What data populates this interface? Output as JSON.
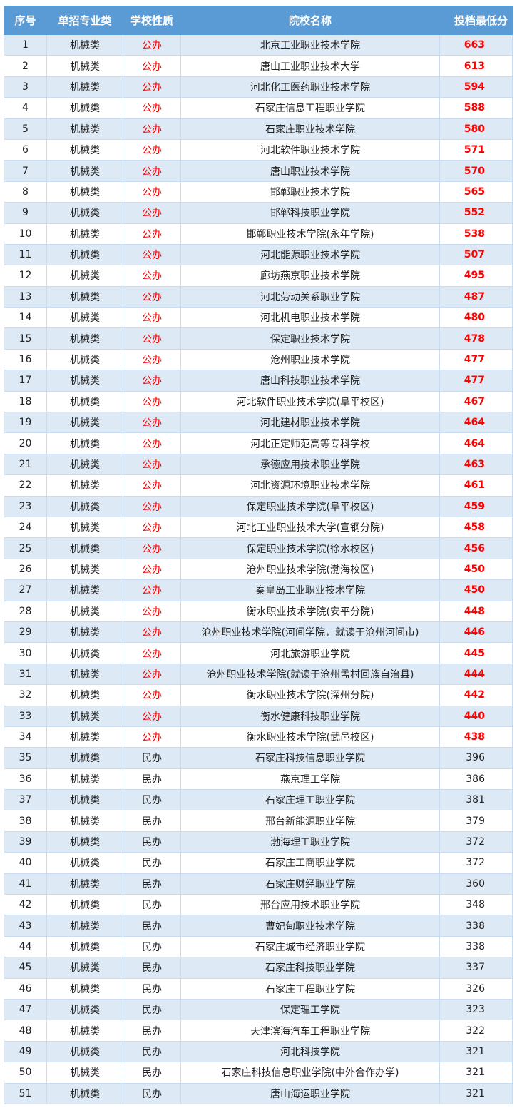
{
  "headers": [
    "序号",
    "单招专业类",
    "学校性质",
    "院校名称",
    "投档最低分"
  ],
  "colors": {
    "header_bg": "#5b9bd5",
    "row_alt": "#dde9f5",
    "public_text": "#ff0000"
  },
  "rows": [
    [
      "1",
      "机械类",
      "公办",
      "北京工业职业技术学院",
      "663"
    ],
    [
      "2",
      "机械类",
      "公办",
      "唐山工业职业技术大学",
      "613"
    ],
    [
      "3",
      "机械类",
      "公办",
      "河北化工医药职业技术学院",
      "594"
    ],
    [
      "4",
      "机械类",
      "公办",
      "石家庄信息工程职业学院",
      "588"
    ],
    [
      "5",
      "机械类",
      "公办",
      "石家庄职业技术学院",
      "580"
    ],
    [
      "6",
      "机械类",
      "公办",
      "河北软件职业技术学院",
      "571"
    ],
    [
      "7",
      "机械类",
      "公办",
      "唐山职业技术学院",
      "570"
    ],
    [
      "8",
      "机械类",
      "公办",
      "邯郸职业技术学院",
      "565"
    ],
    [
      "9",
      "机械类",
      "公办",
      "邯郸科技职业学院",
      "552"
    ],
    [
      "10",
      "机械类",
      "公办",
      "邯郸职业技术学院(永年学院)",
      "538"
    ],
    [
      "11",
      "机械类",
      "公办",
      "河北能源职业技术学院",
      "507"
    ],
    [
      "12",
      "机械类",
      "公办",
      "廊坊燕京职业技术学院",
      "495"
    ],
    [
      "13",
      "机械类",
      "公办",
      "河北劳动关系职业学院",
      "487"
    ],
    [
      "14",
      "机械类",
      "公办",
      "河北机电职业技术学院",
      "480"
    ],
    [
      "15",
      "机械类",
      "公办",
      "保定职业技术学院",
      "478"
    ],
    [
      "16",
      "机械类",
      "公办",
      "沧州职业技术学院",
      "477"
    ],
    [
      "17",
      "机械类",
      "公办",
      "唐山科技职业技术学院",
      "477"
    ],
    [
      "18",
      "机械类",
      "公办",
      "河北软件职业技术学院(阜平校区)",
      "467"
    ],
    [
      "19",
      "机械类",
      "公办",
      "河北建材职业技术学院",
      "464"
    ],
    [
      "20",
      "机械类",
      "公办",
      "河北正定师范高等专科学校",
      "464"
    ],
    [
      "21",
      "机械类",
      "公办",
      "承德应用技术职业学院",
      "463"
    ],
    [
      "22",
      "机械类",
      "公办",
      "河北资源环境职业技术学院",
      "461"
    ],
    [
      "23",
      "机械类",
      "公办",
      "保定职业技术学院(阜平校区)",
      "459"
    ],
    [
      "24",
      "机械类",
      "公办",
      "河北工业职业技术大学(宣钢分院)",
      "458"
    ],
    [
      "25",
      "机械类",
      "公办",
      "保定职业技术学院(徐水校区)",
      "456"
    ],
    [
      "26",
      "机械类",
      "公办",
      "沧州职业技术学院(渤海校区)",
      "450"
    ],
    [
      "27",
      "机械类",
      "公办",
      "秦皇岛工业职业技术学院",
      "450"
    ],
    [
      "28",
      "机械类",
      "公办",
      "衡水职业技术学院(安平分院)",
      "448"
    ],
    [
      "29",
      "机械类",
      "公办",
      "沧州职业技术学院(河间学院，就读于沧州河间市)",
      "446"
    ],
    [
      "30",
      "机械类",
      "公办",
      "河北旅游职业学院",
      "445"
    ],
    [
      "31",
      "机械类",
      "公办",
      "沧州职业技术学院(就读于沧州孟村回族自治县)",
      "444"
    ],
    [
      "32",
      "机械类",
      "公办",
      "衡水职业技术学院(深州分院)",
      "442"
    ],
    [
      "33",
      "机械类",
      "公办",
      "衡水健康科技职业学院",
      "440"
    ],
    [
      "34",
      "机械类",
      "公办",
      "衡水职业技术学院(武邑校区)",
      "438"
    ],
    [
      "35",
      "机械类",
      "民办",
      "石家庄科技信息职业学院",
      "396"
    ],
    [
      "36",
      "机械类",
      "民办",
      "燕京理工学院",
      "386"
    ],
    [
      "37",
      "机械类",
      "民办",
      "石家庄理工职业学院",
      "381"
    ],
    [
      "38",
      "机械类",
      "民办",
      "邢台新能源职业学院",
      "379"
    ],
    [
      "39",
      "机械类",
      "民办",
      "渤海理工职业学院",
      "372"
    ],
    [
      "40",
      "机械类",
      "民办",
      "石家庄工商职业学院",
      "372"
    ],
    [
      "41",
      "机械类",
      "民办",
      "石家庄财经职业学院",
      "360"
    ],
    [
      "42",
      "机械类",
      "民办",
      "邢台应用技术职业学院",
      "348"
    ],
    [
      "43",
      "机械类",
      "民办",
      "曹妃甸职业技术学院",
      "338"
    ],
    [
      "44",
      "机械类",
      "民办",
      "石家庄城市经济职业学院",
      "338"
    ],
    [
      "45",
      "机械类",
      "民办",
      "石家庄科技职业学院",
      "337"
    ],
    [
      "46",
      "机械类",
      "民办",
      "石家庄工程职业学院",
      "326"
    ],
    [
      "47",
      "机械类",
      "民办",
      "保定理工学院",
      "323"
    ],
    [
      "48",
      "机械类",
      "民办",
      "天津滨海汽车工程职业学院",
      "322"
    ],
    [
      "49",
      "机械类",
      "民办",
      "河北科技学院",
      "321"
    ],
    [
      "50",
      "机械类",
      "民办",
      "石家庄科技信息职业学院(中外合作办学)",
      "321"
    ],
    [
      "51",
      "机械类",
      "民办",
      "唐山海运职业学院",
      "321"
    ]
  ]
}
